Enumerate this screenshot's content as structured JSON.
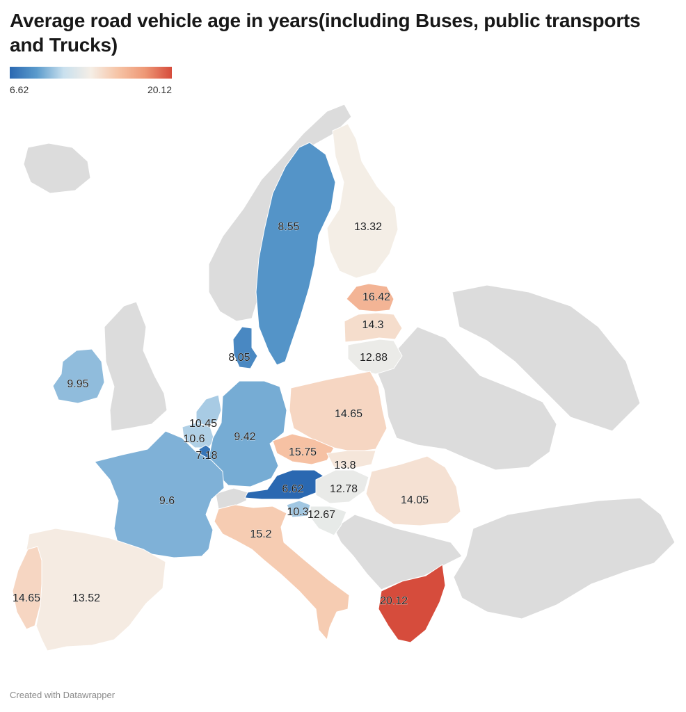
{
  "title": "Average road vehicle age in years(including Buses, public transports and Trucks)",
  "legend": {
    "min_label": "6.62",
    "max_label": "20.12",
    "colors": [
      "#2a68b1",
      "#5b9bcc",
      "#c9e0ee",
      "#f5eee6",
      "#f6c4a6",
      "#ee9876",
      "#d64c3c"
    ]
  },
  "footer": "Created with Datawrapper",
  "no_data_color": "#dcdcdc",
  "map_data": {
    "type": "choropleth",
    "unit": "years",
    "range": [
      6.62,
      20.12
    ],
    "regions": [
      {
        "id": "sweden",
        "value": "8.55"
      },
      {
        "id": "finland",
        "value": "13.32"
      },
      {
        "id": "estonia",
        "value": "16.42"
      },
      {
        "id": "latvia",
        "value": "14.3"
      },
      {
        "id": "lithuania",
        "value": "12.88"
      },
      {
        "id": "denmark",
        "value": "8.05"
      },
      {
        "id": "ireland",
        "value": "9.95"
      },
      {
        "id": "netherlands",
        "value": "10.45"
      },
      {
        "id": "belgium",
        "value": "10.6"
      },
      {
        "id": "luxembourg",
        "value": "7.18"
      },
      {
        "id": "germany",
        "value": "9.42"
      },
      {
        "id": "poland",
        "value": "14.65"
      },
      {
        "id": "czechia",
        "value": "15.75"
      },
      {
        "id": "slovakia",
        "value": "13.8"
      },
      {
        "id": "austria",
        "value": "6.62"
      },
      {
        "id": "hungary",
        "value": "12.78"
      },
      {
        "id": "romania",
        "value": "14.05"
      },
      {
        "id": "france",
        "value": "9.6"
      },
      {
        "id": "slovenia",
        "value": "10.3"
      },
      {
        "id": "croatia",
        "value": "12.67"
      },
      {
        "id": "italy",
        "value": "15.2"
      },
      {
        "id": "spain",
        "value": "13.52"
      },
      {
        "id": "portugal",
        "value": "14.65"
      },
      {
        "id": "greece",
        "value": "20.12"
      }
    ]
  }
}
